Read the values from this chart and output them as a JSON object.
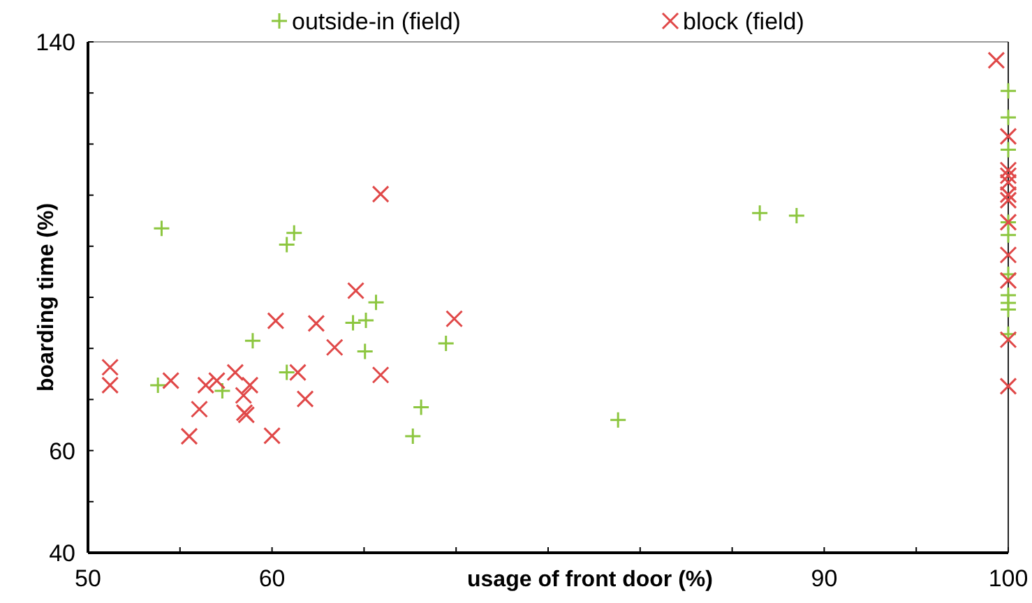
{
  "chart_data": {
    "type": "scatter",
    "xlabel": "usage of front door (%)",
    "ylabel": "boarding time (%)",
    "xlim": [
      50,
      100
    ],
    "xticks": [
      50,
      {
        "value": 55,
        "label": null
      },
      60,
      {
        "value": 65,
        "label": null
      },
      {
        "value": 70,
        "label": null
      },
      {
        "value": 75,
        "label": null
      },
      {
        "value": 80,
        "label": null
      },
      {
        "value": 85,
        "label": null
      },
      90,
      {
        "value": 95,
        "label": null
      },
      100
    ],
    "ylim": [
      40,
      140
    ],
    "yticks": [
      40,
      {
        "value": 50,
        "label": null
      },
      60,
      {
        "value": 70,
        "label": null
      },
      {
        "value": 80,
        "label": null
      },
      {
        "value": 90,
        "label": null
      },
      {
        "value": 100,
        "label": null
      },
      {
        "value": 110,
        "label": null
      },
      {
        "value": 120,
        "label": null
      },
      {
        "value": 130,
        "label": null
      },
      140
    ],
    "grid": false,
    "legend": "top",
    "series": [
      {
        "name": "outside-in (field)",
        "color": "#8cc63f",
        "marker": "cross",
        "x": [
          54.0,
          60.8,
          61.2,
          58.95,
          53.8,
          57.3,
          60.8,
          64.4,
          65.1,
          65.65,
          65.05,
          69.45,
          68.1,
          67.65,
          86.5,
          88.5,
          78.8,
          100,
          100,
          100,
          100,
          100,
          100,
          100,
          100,
          100,
          100
        ],
        "values": [
          103.5,
          100.3,
          102.6,
          81.5,
          72.8,
          71.7,
          75.3,
          85.0,
          85.5,
          89.0,
          79.4,
          81.0,
          68.5,
          62.8,
          106.5,
          106.0,
          66.0,
          130.4,
          125.2,
          118.9,
          104.7,
          102.2,
          94.5,
          90.4,
          88.9,
          87.6,
          82.8
        ]
      },
      {
        "name": "block (field)",
        "color": "#e04848",
        "marker": "x",
        "x": [
          65.9,
          64.55,
          60.2,
          62.4,
          63.4,
          69.9,
          65.9,
          61.4,
          61.8,
          51.2,
          51.2,
          54.5,
          56.4,
          57.0,
          58.0,
          58.45,
          58.8,
          58.5,
          58.6,
          56.05,
          55.5,
          60.0,
          99.35,
          100,
          100,
          100,
          100,
          100,
          100,
          100,
          100,
          100,
          100,
          100
        ],
        "values": [
          110.2,
          91.3,
          85.4,
          84.9,
          80.2,
          85.8,
          74.8,
          75.3,
          70.1,
          76.3,
          72.8,
          73.7,
          72.8,
          73.7,
          75.3,
          70.8,
          72.8,
          67.4,
          67.0,
          68.1,
          62.8,
          62.9,
          136.4,
          121.5,
          114.9,
          113.8,
          112.5,
          110.1,
          109.0,
          104.7,
          98.3,
          93.3,
          81.7,
          72.6
        ]
      }
    ]
  }
}
